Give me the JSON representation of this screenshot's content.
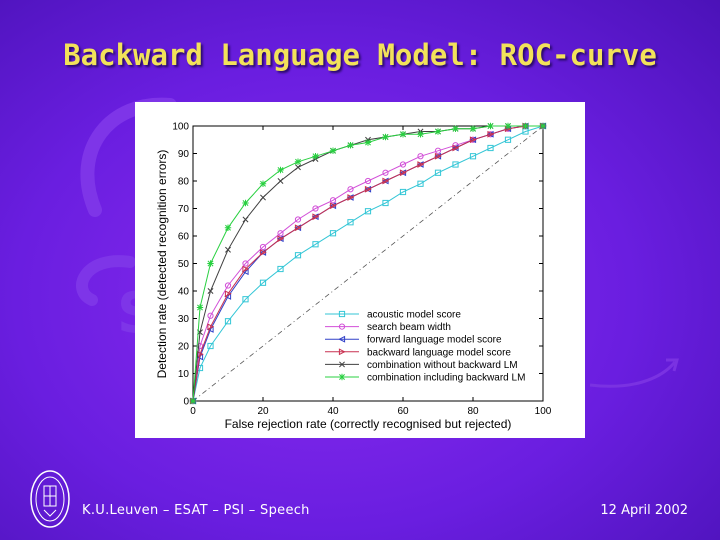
{
  "slide": {
    "title": "Backward Language Model: ROC-curve",
    "footer_left": "K.U.Leuven – ESAT – PSI – Speech",
    "footer_right": "12 April 2002"
  },
  "colors": {
    "background": "#6a1ee0",
    "title": "#f2e25a",
    "footer_text": "#ffffff"
  },
  "chart_data": {
    "type": "line",
    "title": "",
    "xlabel": "False rejection rate (correctly recognised but rejected)",
    "ylabel": "Detection rate (detected recognition errors)",
    "xlim": [
      0,
      100
    ],
    "ylim": [
      0,
      100
    ],
    "xticks": [
      0,
      20,
      40,
      60,
      80,
      100
    ],
    "yticks": [
      0,
      10,
      20,
      30,
      40,
      50,
      60,
      70,
      80,
      90,
      100
    ],
    "grid": false,
    "legend_position": "bottom-right",
    "diagonal_reference": true,
    "series": [
      {
        "name": "acoustic model score",
        "color": "#33c6d6",
        "marker": "square",
        "x": [
          0,
          2,
          5,
          10,
          15,
          20,
          25,
          30,
          35,
          40,
          45,
          50,
          55,
          60,
          65,
          70,
          75,
          80,
          85,
          90,
          95,
          100
        ],
        "y": [
          0,
          12,
          20,
          29,
          37,
          43,
          48,
          53,
          57,
          61,
          65,
          69,
          72,
          76,
          79,
          83,
          86,
          89,
          92,
          95,
          98,
          100
        ]
      },
      {
        "name": "search beam width",
        "color": "#d24fd8",
        "marker": "circle",
        "x": [
          0,
          2,
          5,
          10,
          15,
          20,
          25,
          30,
          35,
          40,
          45,
          50,
          55,
          60,
          65,
          70,
          75,
          80,
          85,
          90,
          95,
          100
        ],
        "y": [
          0,
          20,
          31,
          42,
          50,
          56,
          61,
          66,
          70,
          73,
          77,
          80,
          83,
          86,
          89,
          91,
          93,
          95,
          97,
          99,
          100,
          100
        ]
      },
      {
        "name": "forward language model score",
        "color": "#3040c8",
        "marker": "triangle-left",
        "x": [
          0,
          2,
          5,
          10,
          15,
          20,
          25,
          30,
          35,
          40,
          45,
          50,
          55,
          60,
          65,
          70,
          75,
          80,
          85,
          90,
          95,
          100
        ],
        "y": [
          0,
          16,
          26,
          38,
          47,
          54,
          59,
          63,
          67,
          71,
          74,
          77,
          80,
          83,
          86,
          89,
          92,
          95,
          97,
          99,
          100,
          100
        ]
      },
      {
        "name": "backward language model score",
        "color": "#c83050",
        "marker": "triangle-right",
        "x": [
          0,
          2,
          5,
          10,
          15,
          20,
          25,
          30,
          35,
          40,
          45,
          50,
          55,
          60,
          65,
          70,
          75,
          80,
          85,
          90,
          95,
          100
        ],
        "y": [
          0,
          17,
          27,
          39,
          48,
          54,
          59,
          63,
          67,
          71,
          74,
          77,
          80,
          83,
          86,
          89,
          92,
          95,
          97,
          99,
          100,
          100
        ]
      },
      {
        "name": "combination without backward LM",
        "color": "#404040",
        "marker": "x",
        "x": [
          0,
          2,
          5,
          10,
          15,
          20,
          25,
          30,
          35,
          40,
          45,
          50,
          55,
          60,
          65,
          70,
          75,
          80,
          85,
          90,
          95,
          100
        ],
        "y": [
          0,
          25,
          40,
          55,
          66,
          74,
          80,
          85,
          88,
          91,
          93,
          95,
          96,
          97,
          98,
          98,
          99,
          99,
          100,
          100,
          100,
          100
        ]
      },
      {
        "name": "combination including backward LM",
        "color": "#28d040",
        "marker": "asterisk",
        "x": [
          0,
          2,
          5,
          10,
          15,
          20,
          25,
          30,
          35,
          40,
          45,
          50,
          55,
          60,
          65,
          70,
          75,
          80,
          85,
          90,
          95,
          100
        ],
        "y": [
          0,
          34,
          50,
          63,
          72,
          79,
          84,
          87,
          89,
          91,
          93,
          94,
          96,
          97,
          97,
          98,
          99,
          99,
          100,
          100,
          100,
          100
        ]
      }
    ]
  }
}
